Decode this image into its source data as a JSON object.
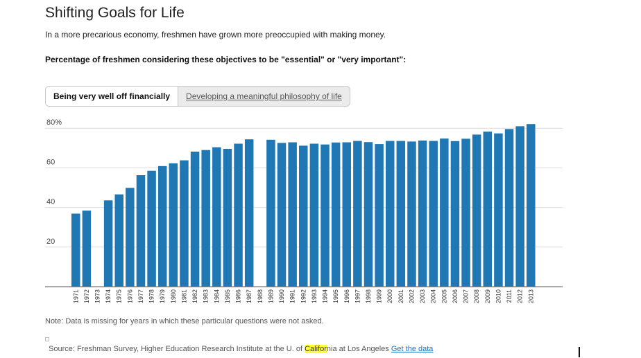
{
  "header": {
    "title": "Shifting Goals for Life",
    "subtitle": "In a more precarious economy, freshmen have grown more preoccupied with making money.",
    "question": "Percentage of freshmen considering these objectives to be \"essential\" or \"very important\":"
  },
  "tabs": [
    {
      "label": "Being very well off financially",
      "active": true
    },
    {
      "label": "Developing a meaningful philosophy of life",
      "active": false
    }
  ],
  "chart_data": {
    "type": "bar",
    "title": "",
    "xlabel": "",
    "ylabel": "",
    "ylim": [
      0,
      82
    ],
    "yticks": [
      20,
      40,
      60,
      80
    ],
    "ytick_labels": [
      "20",
      "40",
      "60",
      "80%"
    ],
    "grid": true,
    "bar_color": "#1f77b4",
    "categories": [
      "1971",
      "1972",
      "1973",
      "1974",
      "1975",
      "1976",
      "1977",
      "1978",
      "1979",
      "1980",
      "1981",
      "1982",
      "1983",
      "1984",
      "1985",
      "1986",
      "1987",
      "1988",
      "1989",
      "1990",
      "1991",
      "1992",
      "1993",
      "1994",
      "1995",
      "1996",
      "1997",
      "1998",
      "1999",
      "2000",
      "2001",
      "2002",
      "2003",
      "2004",
      "2005",
      "2006",
      "2007",
      "2008",
      "2009",
      "2010",
      "2011",
      "2012",
      "2013"
    ],
    "series": [
      {
        "values": [
          36.9,
          38.4,
          null,
          43.6,
          46.6,
          49.9,
          56.3,
          58.5,
          60.9,
          62.3,
          63.8,
          68.2,
          69.0,
          70.4,
          69.6,
          72.2,
          74.4,
          null,
          74.2,
          72.6,
          72.9,
          71.2,
          72.2,
          71.8,
          72.8,
          72.9,
          73.6,
          73.0,
          72.0,
          73.6,
          73.6,
          73.3,
          73.8,
          73.6,
          74.8,
          73.5,
          74.7,
          76.8,
          78.3,
          77.4,
          79.6,
          81.0,
          82.1
        ]
      }
    ]
  },
  "footer": {
    "note": "Note: Data is missing for years in which these particular questions were not asked.",
    "source_before": "Source: Freshman Survey, Higher Education Research Institute at the U. of ",
    "source_highlight": "Califor",
    "source_after": "nia at Los Angeles ",
    "source_link": "Get the data"
  }
}
